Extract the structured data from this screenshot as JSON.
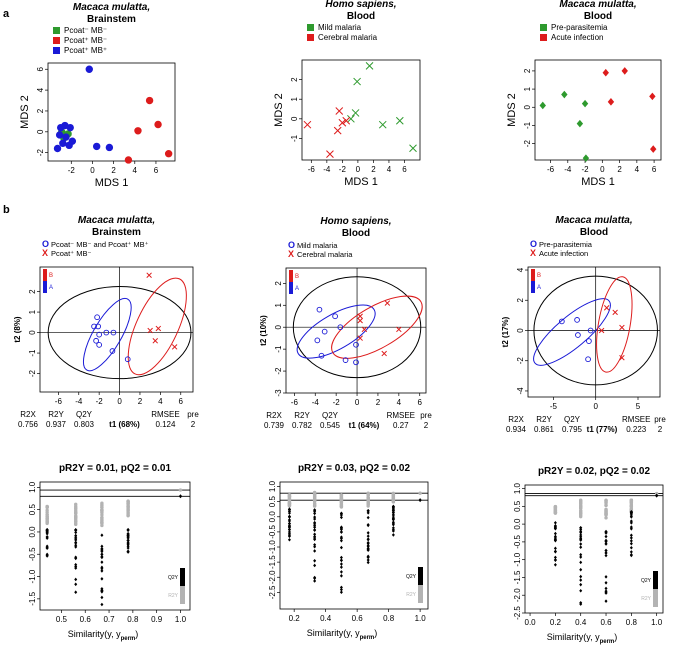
{
  "panel_labels": {
    "a": "a",
    "b": "b"
  },
  "colors": {
    "green": "#2e9a2e",
    "red": "#dd1c1c",
    "blue": "#1a1ad6",
    "gray": "#b3b3b3",
    "black": "#000000"
  },
  "chart_data": [
    {
      "id": "a1",
      "type": "scatter",
      "title_line1": "Macaca mulatta,",
      "title_line2": "Brainstem",
      "xlabel": "MDS 1",
      "ylabel": "MDS 2",
      "xlim": [
        -4.2,
        7.8
      ],
      "ylim": [
        -2.8,
        6.6
      ],
      "xticks": [
        -2,
        0,
        2,
        4,
        6
      ],
      "yticks": [
        -2,
        0,
        2,
        4,
        6
      ],
      "legend": [
        "Pcoat⁻ MB⁻",
        "Pcoat⁺ MB⁻",
        "Pcoat⁺ MB⁺"
      ],
      "legend_colors": [
        "#2e9a2e",
        "#dd1c1c",
        "#1a1ad6"
      ],
      "marker": "circle",
      "series": [
        {
          "name": "Pcoat⁻ MB⁻",
          "color": "#2e9a2e",
          "points": [
            [
              -2.9,
              0.0
            ],
            [
              -2.7,
              -0.6
            ],
            [
              -2.3,
              -0.2
            ]
          ]
        },
        {
          "name": "Pcoat⁺ MB⁻",
          "color": "#dd1c1c",
          "points": [
            [
              5.4,
              3.0
            ],
            [
              6.2,
              0.7
            ],
            [
              4.3,
              0.1
            ],
            [
              7.2,
              -2.1
            ],
            [
              3.4,
              -2.7
            ]
          ]
        },
        {
          "name": "Pcoat⁺ MB⁺",
          "color": "#1a1ad6",
          "points": [
            [
              -0.3,
              6.0
            ],
            [
              -3.0,
              0.4
            ],
            [
              -2.6,
              0.6
            ],
            [
              -2.1,
              0.4
            ],
            [
              -3.1,
              -0.3
            ],
            [
              -2.5,
              -0.5
            ],
            [
              -1.9,
              -0.9
            ],
            [
              -2.8,
              -1.1
            ],
            [
              -3.3,
              -1.6
            ],
            [
              -2.2,
              -1.3
            ],
            [
              0.4,
              -1.4
            ],
            [
              1.6,
              -1.5
            ]
          ]
        }
      ]
    },
    {
      "id": "a2",
      "type": "scatter",
      "title_line1": "Homo sapiens,",
      "title_line2": "Blood",
      "xlabel": "MDS 1",
      "ylabel": "MDS 2",
      "xlim": [
        -7.2,
        8.0
      ],
      "ylim": [
        -2.1,
        3.0
      ],
      "xticks": [
        -6,
        -4,
        -2,
        0,
        2,
        4,
        6
      ],
      "yticks": [
        -1,
        0,
        1,
        2
      ],
      "legend": [
        "Mild malaria",
        "Cerebral malaria"
      ],
      "legend_colors": [
        "#2e9a2e",
        "#dd1c1c"
      ],
      "marker": "x",
      "series": [
        {
          "name": "Mild malaria",
          "color": "#2e9a2e",
          "points": [
            [
              1.5,
              2.7
            ],
            [
              -0.1,
              1.9
            ],
            [
              -0.3,
              0.3
            ],
            [
              -0.9,
              0.0
            ],
            [
              3.2,
              -0.3
            ],
            [
              5.4,
              -0.1
            ],
            [
              7.1,
              -1.5
            ]
          ]
        },
        {
          "name": "Cerebral malaria",
          "color": "#dd1c1c",
          "points": [
            [
              -6.5,
              -0.3
            ],
            [
              -2.4,
              0.4
            ],
            [
              -2.0,
              -0.2
            ],
            [
              -1.5,
              -0.1
            ],
            [
              -2.6,
              -0.6
            ],
            [
              -3.6,
              -1.8
            ]
          ]
        }
      ]
    },
    {
      "id": "a3",
      "type": "scatter",
      "title_line1": "Macaca mulatta,",
      "title_line2": "Blood",
      "xlabel": "MDS 1",
      "ylabel": "MDS 2",
      "xlim": [
        -7.8,
        6.8
      ],
      "ylim": [
        -2.9,
        2.6
      ],
      "xticks": [
        -6,
        -4,
        -2,
        0,
        2,
        4,
        6
      ],
      "yticks": [
        -2,
        -1,
        0,
        1,
        2
      ],
      "legend": [
        "Pre-parasitemia",
        "Acute infection"
      ],
      "legend_colors": [
        "#2e9a2e",
        "#dd1c1c"
      ],
      "marker": "diamond",
      "series": [
        {
          "name": "Pre-parasitemia",
          "color": "#2e9a2e",
          "points": [
            [
              -6.9,
              0.1
            ],
            [
              -4.4,
              0.7
            ],
            [
              -2.0,
              0.2
            ],
            [
              -2.6,
              -0.9
            ],
            [
              -1.9,
              -2.8
            ]
          ]
        },
        {
          "name": "Acute infection",
          "color": "#dd1c1c",
          "points": [
            [
              0.4,
              1.9
            ],
            [
              2.6,
              2.0
            ],
            [
              1.0,
              0.3
            ],
            [
              5.8,
              0.6
            ],
            [
              5.9,
              -2.3
            ]
          ]
        }
      ]
    },
    {
      "id": "b1",
      "type": "scatter",
      "title_line1": "Macaca mulatta,",
      "title_line2": "Brainstem",
      "xlabel": "t1 (68%)",
      "ylabel": "t2 (8%)",
      "xlim": [
        -7.8,
        7.2
      ],
      "ylim": [
        -2.9,
        3.2
      ],
      "xticks": [
        -6,
        -4,
        -2,
        0,
        2,
        4,
        6
      ],
      "yticks": [
        -2,
        -1,
        0,
        1,
        2
      ],
      "legend": [
        "Pcoat⁻ MB⁻ and Pcoat⁺ MB⁺",
        "Pcoat⁺ MB⁻"
      ],
      "legend_markers": [
        "O",
        "X"
      ],
      "legend_colors": [
        "#1a1ad6",
        "#dd1c1c"
      ],
      "ellipses": [
        {
          "color": "#000000",
          "cx": 0,
          "cy": 0,
          "rx": 7.0,
          "ry": 2.25,
          "angle": 0
        },
        {
          "color": "#1a1ad6",
          "cx": -1.2,
          "cy": -0.1,
          "rx": 2.5,
          "ry": 1.25,
          "angle": -60
        },
        {
          "color": "#dd1c1c",
          "cx": 3.7,
          "cy": 0.3,
          "rx": 3.7,
          "ry": 1.6,
          "angle": -65
        }
      ],
      "series": [
        {
          "name": "Pcoat⁻ MB⁻ and Pcoat⁺ MB⁺",
          "color": "#1a1ad6",
          "marker": "o",
          "points": [
            [
              -2.2,
              0.75
            ],
            [
              -2.1,
              0.3
            ],
            [
              -2.5,
              0.3
            ],
            [
              -1.3,
              0.0
            ],
            [
              -2.0,
              -0.1
            ],
            [
              -0.6,
              0.0
            ],
            [
              -2.3,
              -0.4
            ],
            [
              -2.0,
              -0.6
            ],
            [
              -0.7,
              -0.9
            ],
            [
              0.8,
              -1.3
            ]
          ]
        },
        {
          "name": "Pcoat⁺ MB⁻",
          "color": "#dd1c1c",
          "marker": "x",
          "points": [
            [
              2.9,
              2.8
            ],
            [
              3.8,
              0.2
            ],
            [
              3.0,
              0.1
            ],
            [
              3.5,
              -0.4
            ],
            [
              5.4,
              -0.7
            ]
          ]
        }
      ],
      "stats_headers": [
        "R2X",
        "R2Y",
        "Q2Y",
        "RMSEE",
        "pre"
      ],
      "stats_values": [
        "0.756",
        "0.937",
        "0.803",
        "0.124",
        "2"
      ],
      "legend_bar_labels": [
        "B",
        "A"
      ]
    },
    {
      "id": "b2",
      "type": "scatter",
      "title_line1": "Homo sapiens,",
      "title_line2": "Blood",
      "xlabel": "t1 (64%)",
      "ylabel": "t2 (10%)",
      "xlim": [
        -6.8,
        6.6
      ],
      "ylim": [
        -3.0,
        2.7
      ],
      "xticks": [
        -6,
        -4,
        -2,
        0,
        2,
        4,
        6
      ],
      "yticks": [
        -3,
        -2,
        -1,
        0,
        1,
        2
      ],
      "legend": [
        "Mild malaria",
        "Cerebral malaria"
      ],
      "legend_markers": [
        "O",
        "X"
      ],
      "legend_colors": [
        "#1a1ad6",
        "#dd1c1c"
      ],
      "ellipses": [
        {
          "color": "#000000",
          "cx": 0,
          "cy": 0,
          "rx": 6.1,
          "ry": 2.3,
          "angle": 0
        },
        {
          "color": "#1a1ad6",
          "cx": -2.0,
          "cy": -0.2,
          "rx": 3.0,
          "ry": 1.25,
          "angle": -30
        },
        {
          "color": "#dd1c1c",
          "cx": 1.9,
          "cy": 0.0,
          "rx": 3.6,
          "ry": 1.45,
          "angle": -30
        }
      ],
      "series": [
        {
          "name": "Mild malaria",
          "color": "#1a1ad6",
          "marker": "o",
          "points": [
            [
              -3.6,
              0.8
            ],
            [
              -2.1,
              0.5
            ],
            [
              -1.6,
              0.0
            ],
            [
              -3.1,
              -0.2
            ],
            [
              -3.8,
              -0.6
            ],
            [
              -3.4,
              -1.3
            ],
            [
              -0.1,
              -0.8
            ],
            [
              -1.1,
              -1.5
            ],
            [
              -0.1,
              -1.6
            ]
          ]
        },
        {
          "name": "Cerebral malaria",
          "color": "#dd1c1c",
          "marker": "x",
          "points": [
            [
              2.9,
              1.1
            ],
            [
              0.3,
              0.5
            ],
            [
              0.3,
              0.3
            ],
            [
              0.7,
              -0.1
            ],
            [
              4.0,
              -0.1
            ],
            [
              0.3,
              -0.5
            ],
            [
              2.6,
              -1.2
            ]
          ]
        }
      ],
      "stats_headers": [
        "R2X",
        "R2Y",
        "Q2Y",
        "RMSEE",
        "pre"
      ],
      "stats_values": [
        "0.739",
        "0.782",
        "0.545",
        "0.27",
        "2"
      ],
      "legend_bar_labels": [
        "B",
        "A"
      ]
    },
    {
      "id": "b3",
      "type": "scatter",
      "title_line1": "Macaca mulatta,",
      "title_line2": "Blood",
      "xlabel": "t1 (77%)",
      "ylabel": "t2 (17%)",
      "xlim": [
        -8.0,
        7.6
      ],
      "ylim": [
        -4.4,
        4.2
      ],
      "xticks": [
        -5,
        0,
        5
      ],
      "yticks": [
        -4,
        -2,
        0,
        2,
        4
      ],
      "legend": [
        "Pre-parasitemia",
        "Acute infection"
      ],
      "legend_markers": [
        "O",
        "X"
      ],
      "legend_colors": [
        "#1a1ad6",
        "#dd1c1c"
      ],
      "ellipses": [
        {
          "color": "#000000",
          "cx": 0,
          "cy": 0,
          "rx": 7.3,
          "ry": 3.6,
          "angle": 0
        },
        {
          "color": "#1a1ad6",
          "cx": -2.8,
          "cy": -0.1,
          "rx": 3.3,
          "ry": 2.0,
          "angle": -40
        },
        {
          "color": "#dd1c1c",
          "cx": 2.2,
          "cy": 0.4,
          "rx": 3.4,
          "ry": 2.0,
          "angle": -80
        }
      ],
      "series": [
        {
          "name": "Pre-parasitemia",
          "color": "#1a1ad6",
          "marker": "o",
          "points": [
            [
              -4.0,
              0.6
            ],
            [
              -2.2,
              0.7
            ],
            [
              -0.6,
              0.0
            ],
            [
              -2.1,
              -0.3
            ],
            [
              -0.8,
              -0.7
            ],
            [
              -0.9,
              -1.9
            ]
          ]
        },
        {
          "name": "Acute infection",
          "color": "#dd1c1c",
          "marker": "x",
          "points": [
            [
              1.3,
              1.5
            ],
            [
              2.3,
              1.2
            ],
            [
              0.7,
              0.0
            ],
            [
              3.1,
              0.2
            ],
            [
              3.1,
              -1.8
            ]
          ]
        }
      ],
      "stats_headers": [
        "R2X",
        "R2Y",
        "Q2Y",
        "RMSEE",
        "pre"
      ],
      "stats_values": [
        "0.934",
        "0.861",
        "0.795",
        "0.223",
        "2"
      ],
      "legend_bar_labels": [
        "B",
        "A"
      ]
    },
    {
      "id": "c1",
      "type": "scatter",
      "title": "pR2Y = 0.01, pQ2 = 0.01",
      "xlabel": "Similarity(y, y",
      "xlabel_sub": "perm",
      "xlabel_end": ")",
      "xlim": [
        0.41,
        1.04
      ],
      "ylim": [
        -1.75,
        1.12
      ],
      "xticks": [
        "0.5",
        "0.6",
        "0.7",
        "0.8",
        "0.9",
        "1.0"
      ],
      "xtick_values": [
        0.5,
        0.6,
        0.7,
        0.8,
        0.9,
        1.0
      ],
      "yticks": [
        "-1.5",
        "-1.0",
        "-0.5",
        "0.0",
        "0.5",
        "1.0"
      ],
      "ytick_values": [
        -1.5,
        -1.0,
        -0.5,
        0.0,
        0.5,
        1.0
      ],
      "hlines": [
        0.94,
        0.8
      ],
      "legend": [
        "Q2Y",
        "R2Y"
      ],
      "r2y_columns": [
        {
          "x": 0.44,
          "min": 0.18,
          "max": 0.6
        },
        {
          "x": 0.56,
          "min": 0.15,
          "max": 0.62
        },
        {
          "x": 0.67,
          "min": 0.1,
          "max": 0.66
        },
        {
          "x": 0.78,
          "min": 0.35,
          "max": 0.7
        }
      ],
      "q2y_columns": [
        {
          "x": 0.44,
          "min": -0.55,
          "max": 0.05
        },
        {
          "x": 0.56,
          "min": -1.45,
          "max": 0.05
        },
        {
          "x": 0.67,
          "min": -1.68,
          "max": -0.05
        },
        {
          "x": 0.78,
          "min": -0.5,
          "max": 0.05
        }
      ],
      "points_per_column": 22,
      "actual": {
        "x": 1.0,
        "r2y": 0.94,
        "q2y": 0.8
      }
    },
    {
      "id": "c2",
      "type": "scatter",
      "title": "pR2Y = 0.03, pQ2 = 0.02",
      "xlabel": "",
      "xlim": [
        0.11,
        1.05
      ],
      "ylim": [
        -3.05,
        1.15
      ],
      "xticks": [
        "0.2",
        "0.4",
        "0.6",
        "0.8",
        "1.0"
      ],
      "xtick_values": [
        0.2,
        0.4,
        0.6,
        0.8,
        1.0
      ],
      "yticks": [
        "-2.5",
        "-2.0",
        "-1.5",
        "-1.0",
        "-0.5",
        "0.0",
        "0.5",
        "1.0"
      ],
      "ytick_values": [
        -2.5,
        -2.0,
        -1.5,
        -1.0,
        -0.5,
        0.0,
        0.5,
        1.0
      ],
      "hlines": [
        0.78,
        0.55
      ],
      "legend": [
        "Q2Y",
        "R2Y"
      ],
      "r2y_columns": [
        {
          "x": 0.17,
          "min": 0.35,
          "max": 0.8
        },
        {
          "x": 0.33,
          "min": 0.35,
          "max": 0.82
        },
        {
          "x": 0.5,
          "min": 0.3,
          "max": 0.82
        },
        {
          "x": 0.67,
          "min": 0.35,
          "max": 0.8
        },
        {
          "x": 0.83,
          "min": 0.45,
          "max": 0.8
        }
      ],
      "q2y_columns": [
        {
          "x": 0.17,
          "min": -0.85,
          "max": 0.25
        },
        {
          "x": 0.33,
          "min": -2.85,
          "max": 0.25
        },
        {
          "x": 0.5,
          "min": -2.55,
          "max": 0.15
        },
        {
          "x": 0.67,
          "min": -1.75,
          "max": 0.25
        },
        {
          "x": 0.83,
          "min": -0.75,
          "max": 0.35
        }
      ],
      "points_per_column": 24,
      "actual": {
        "x": 1.0,
        "r2y": 0.78,
        "q2y": 0.55
      }
    },
    {
      "id": "c3",
      "type": "scatter",
      "title": "pR2Y = 0.02, pQ2 = 0.02",
      "xlabel": "",
      "xlim": [
        -0.04,
        1.05
      ],
      "ylim": [
        -2.5,
        1.1
      ],
      "xticks": [
        "0.0",
        "0.2",
        "0.4",
        "0.6",
        "0.8",
        "1.0"
      ],
      "xtick_values": [
        0.0,
        0.2,
        0.4,
        0.6,
        0.8,
        1.0
      ],
      "yticks": [
        "-2.5",
        "-2.0",
        "-1.5",
        "-1.0",
        "-0.5",
        "0.0",
        "0.5",
        "1.0"
      ],
      "ytick_values": [
        -2.5,
        -2.0,
        -1.5,
        -1.0,
        -0.5,
        0.0,
        0.5,
        1.0
      ],
      "hlines": [
        0.86,
        0.8
      ],
      "legend": [
        "Q2Y",
        "R2Y"
      ],
      "r2y_columns": [
        {
          "x": 0.2,
          "min": 0.3,
          "max": 0.5
        },
        {
          "x": 0.4,
          "min": 0.2,
          "max": 0.72
        },
        {
          "x": 0.6,
          "min": 0.15,
          "max": 0.7
        },
        {
          "x": 0.8,
          "min": 0.35,
          "max": 0.75
        }
      ],
      "q2y_columns": [
        {
          "x": 0.2,
          "min": -1.25,
          "max": 0.05
        },
        {
          "x": 0.4,
          "min": -2.35,
          "max": -0.1
        },
        {
          "x": 0.6,
          "min": -2.2,
          "max": -0.1
        },
        {
          "x": 0.8,
          "min": -0.9,
          "max": 0.35
        }
      ],
      "points_per_column": 22,
      "actual": {
        "x": 1.0,
        "r2y": 0.86,
        "q2y": 0.8
      }
    }
  ]
}
